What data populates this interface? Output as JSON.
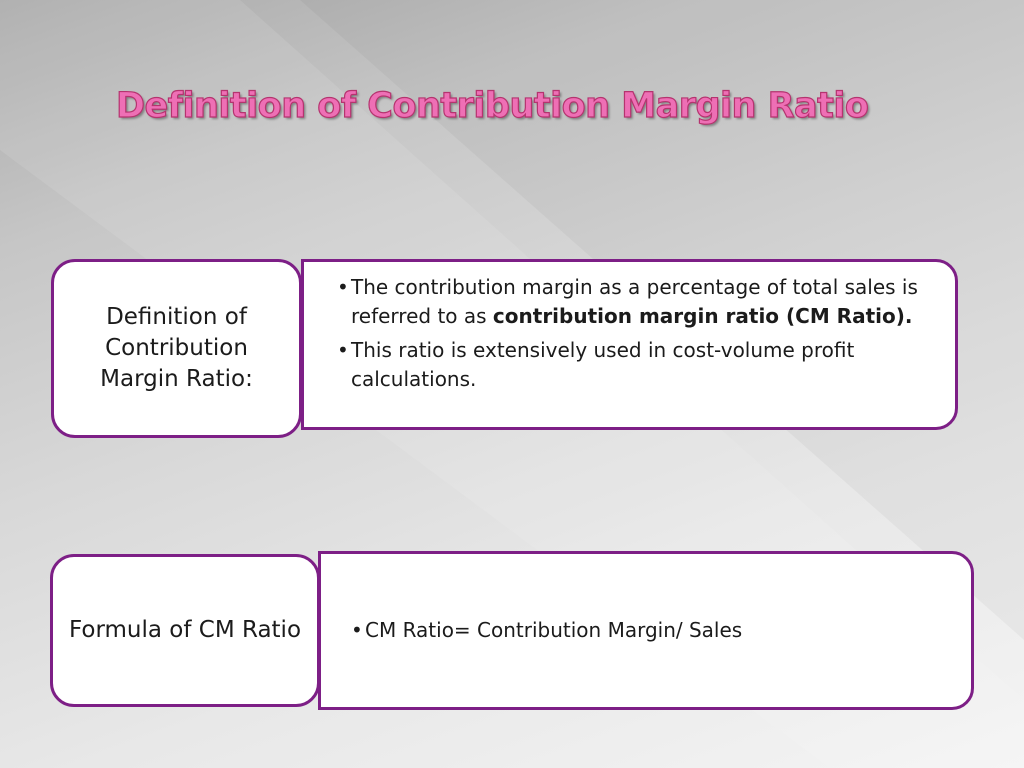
{
  "title": "Definition of Contribution Margin Ratio",
  "bullet_glyph": "•",
  "row1": {
    "label": "Definition of Contribution Margin Ratio:",
    "bullets": [
      {
        "text": "The contribution margin as a percentage of total sales is referred to as ",
        "bold": "contribution margin ratio (CM Ratio)."
      },
      {
        "text": "This ratio is extensively used in cost-volume profit calculations."
      }
    ]
  },
  "row2": {
    "label": "Formula of CM Ratio",
    "bullets": [
      {
        "text": "CM Ratio= Contribution Margin/ Sales"
      }
    ]
  },
  "colors": {
    "title_fill": "#ee6fb5",
    "title_stroke": "#b5346f",
    "box_border": "#7d1f86",
    "box_fill": "#ffffff",
    "text": "#1b1b1b"
  }
}
